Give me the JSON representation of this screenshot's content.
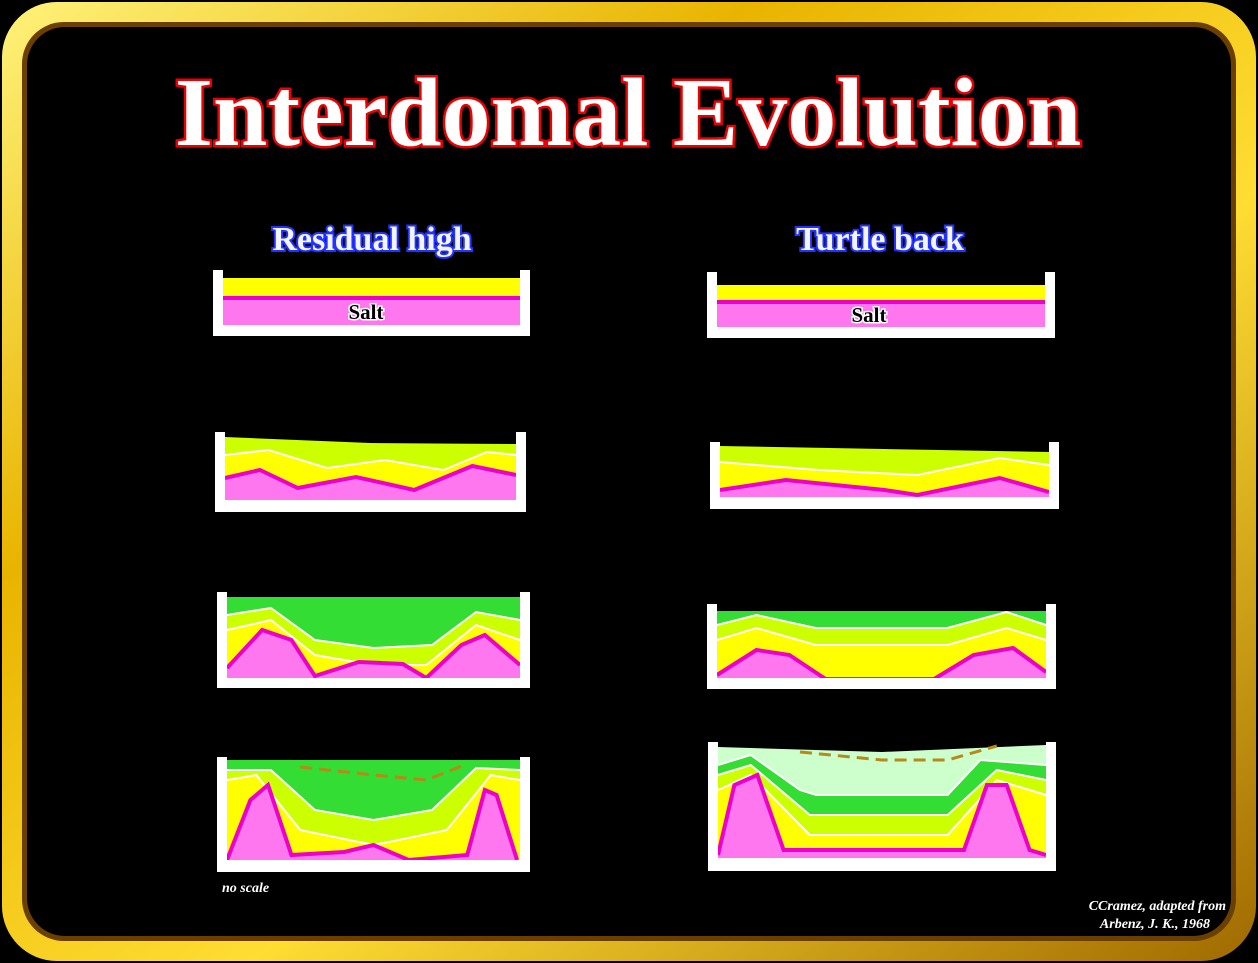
{
  "title": "Interdomal Evolution",
  "columns": [
    {
      "heading": "Residual high",
      "label": "Salt"
    },
    {
      "heading": "Turtle back",
      "label": "Salt"
    }
  ],
  "note": "no scale",
  "credit": [
    "CCramez, adapted from",
    "Arbenz, J. K., 1968"
  ]
}
